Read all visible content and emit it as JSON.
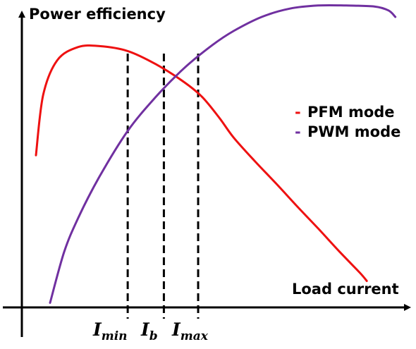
{
  "chart_data": {
    "type": "line",
    "title": "",
    "ylabel": "Power efficiency",
    "xlabel": "Load current",
    "xlim": [
      0,
      100
    ],
    "ylim": [
      0,
      100
    ],
    "grid": false,
    "legend_position": "right",
    "series": [
      {
        "name": "PFM mode",
        "color": "#ee1111",
        "x": [
          3.7,
          5.6,
          9.3,
          14.8,
          20.4,
          27.8,
          35.2,
          42.6,
          47.4,
          51.9,
          55.6,
          61.1,
          66.7,
          72.2,
          77.8,
          83.3,
          88.9,
          90.6
        ],
        "y": [
          49.5,
          69.1,
          80.4,
          84.7,
          85.0,
          83.4,
          79.1,
          73.3,
          68.4,
          61.6,
          55.3,
          47.7,
          40.4,
          33.0,
          25.7,
          18.3,
          11.1,
          8.6
        ]
      },
      {
        "name": "PWM mode",
        "color": "#7030a0",
        "x": [
          7.4,
          11.1,
          14.8,
          20.4,
          27.8,
          35.2,
          42.6,
          50.0,
          55.6,
          63.0,
          70.4,
          77.8,
          85.2,
          92.6,
          96.3,
          98.1
        ],
        "y": [
          1.5,
          18.0,
          29.1,
          42.6,
          57.4,
          68.5,
          77.8,
          85.3,
          89.9,
          94.5,
          97.2,
          98.2,
          98.2,
          97.9,
          96.6,
          94.5
        ]
      }
    ],
    "vlines": [
      {
        "x": 27.8,
        "label_main": "I",
        "label_sub": "min"
      },
      {
        "x": 37.3,
        "label_main": "I",
        "label_sub": "b"
      },
      {
        "x": 46.3,
        "label_main": "I",
        "label_sub": "max"
      }
    ]
  }
}
